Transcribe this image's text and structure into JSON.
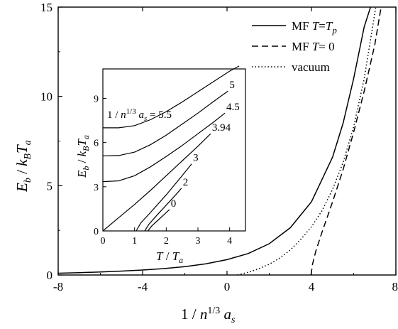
{
  "chart_data": [
    {
      "type": "line",
      "role": "main",
      "xlabel": "1 / n^{1/3} a_s",
      "ylabel": "E_b / k_B T_a",
      "xlim": [
        -8,
        8
      ],
      "ylim": [
        0,
        15
      ],
      "xticks": [
        -8,
        -4,
        0,
        4,
        8
      ],
      "xtick_labels": [
        "-8",
        "-4",
        "0",
        "4",
        "8"
      ],
      "yticks": [
        0,
        5,
        10,
        15
      ],
      "ytick_labels": [
        "0",
        "5",
        "10",
        "15"
      ],
      "legend_position": "top-right",
      "grid": false,
      "series": [
        {
          "name": "MF T=T_p",
          "legend_label": {
            "prefix": "MF ",
            "var": "T",
            "eq": "=",
            "rhs_var": "T",
            "rhs_sub": "p"
          },
          "style": "solid",
          "x": [
            -8,
            -7,
            -6,
            -5,
            -4,
            -3,
            -2,
            -1,
            0,
            1,
            2,
            3,
            4,
            5,
            5.5,
            6,
            6.5,
            6.8
          ],
          "y": [
            0.1,
            0.13,
            0.17,
            0.22,
            0.28,
            0.36,
            0.47,
            0.63,
            0.86,
            1.2,
            1.75,
            2.65,
            4.1,
            6.6,
            8.5,
            11.0,
            13.9,
            15.0
          ]
        },
        {
          "name": "MF T=0",
          "legend_label": {
            "prefix": "MF ",
            "var": "T",
            "eq": "= 0",
            "rhs_var": "",
            "rhs_sub": ""
          },
          "style": "dashed",
          "x": [
            3.98,
            4.05,
            4.2,
            4.5,
            5.0,
            5.5,
            6.0,
            6.5,
            7.0,
            7.3
          ],
          "y": [
            0,
            0.6,
            1.3,
            2.4,
            4.1,
            5.9,
            8.0,
            10.3,
            12.9,
            15.0
          ]
        },
        {
          "name": "vacuum",
          "legend_label": {
            "prefix": "vacuum",
            "var": "",
            "eq": "",
            "rhs_var": "",
            "rhs_sub": ""
          },
          "style": "dotted",
          "x": [
            0.5,
            1,
            1.5,
            2,
            2.5,
            3,
            3.5,
            4,
            4.5,
            5,
            5.5,
            6,
            6.5,
            7.05
          ],
          "y": [
            0,
            0.15,
            0.35,
            0.6,
            0.95,
            1.4,
            2.0,
            2.7,
            3.6,
            4.8,
            6.3,
            8.3,
            11.0,
            15.0
          ]
        }
      ]
    },
    {
      "type": "line",
      "role": "inset",
      "xlabel": "T / T_a",
      "ylabel": "E_b / k_B T_a",
      "xlim": [
        0,
        4.5
      ],
      "ylim": [
        0,
        11
      ],
      "xticks": [
        0,
        1,
        2,
        3,
        4
      ],
      "xtick_labels": [
        "0",
        "1",
        "2",
        "3",
        "4"
      ],
      "yticks": [
        0,
        3,
        6,
        9
      ],
      "ytick_labels": [
        "0",
        "3",
        "6",
        "9"
      ],
      "grid": false,
      "curve_label_prefix": "1 / n^{1/3} a_s = ",
      "series": [
        {
          "name": "5.5",
          "style": "solid",
          "x": [
            0,
            0.5,
            1.0,
            1.5,
            2.0,
            2.5,
            3.0,
            3.5,
            4.0,
            4.3
          ],
          "y": [
            7.0,
            7.0,
            7.15,
            7.55,
            8.1,
            8.75,
            9.45,
            10.15,
            10.85,
            11.2
          ]
        },
        {
          "name": "5",
          "style": "solid",
          "x": [
            0,
            0.5,
            1.0,
            1.5,
            2.0,
            2.5,
            3.0,
            3.5,
            3.95
          ],
          "y": [
            5.1,
            5.12,
            5.35,
            5.85,
            6.5,
            7.25,
            8.0,
            8.8,
            9.5
          ]
        },
        {
          "name": "4.5",
          "style": "solid",
          "x": [
            0,
            0.5,
            1.0,
            1.5,
            2.0,
            2.5,
            3.0,
            3.5,
            3.85
          ],
          "y": [
            3.35,
            3.4,
            3.75,
            4.35,
            5.05,
            5.8,
            6.6,
            7.4,
            8.0
          ]
        },
        {
          "name": "3.94",
          "style": "solid",
          "x": [
            0,
            0.5,
            1.0,
            1.5,
            2.0,
            2.5,
            3.0,
            3.4
          ],
          "y": [
            0,
            0.9,
            1.8,
            2.75,
            3.75,
            4.75,
            5.75,
            6.6
          ]
        },
        {
          "name": "3",
          "style": "solid",
          "x": [
            1.05,
            1.2,
            1.5,
            2.0,
            2.5,
            2.8
          ],
          "y": [
            0,
            0.55,
            1.25,
            2.45,
            3.75,
            4.55
          ]
        },
        {
          "name": "2",
          "style": "solid",
          "x": [
            1.32,
            1.45,
            1.7,
            2.0,
            2.3,
            2.48
          ],
          "y": [
            0,
            0.45,
            1.05,
            1.75,
            2.45,
            2.9
          ]
        },
        {
          "name": "0",
          "style": "solid",
          "x": [
            1.42,
            1.55,
            1.75,
            1.95,
            2.1
          ],
          "y": [
            0,
            0.35,
            0.75,
            1.15,
            1.45
          ]
        }
      ]
    }
  ]
}
